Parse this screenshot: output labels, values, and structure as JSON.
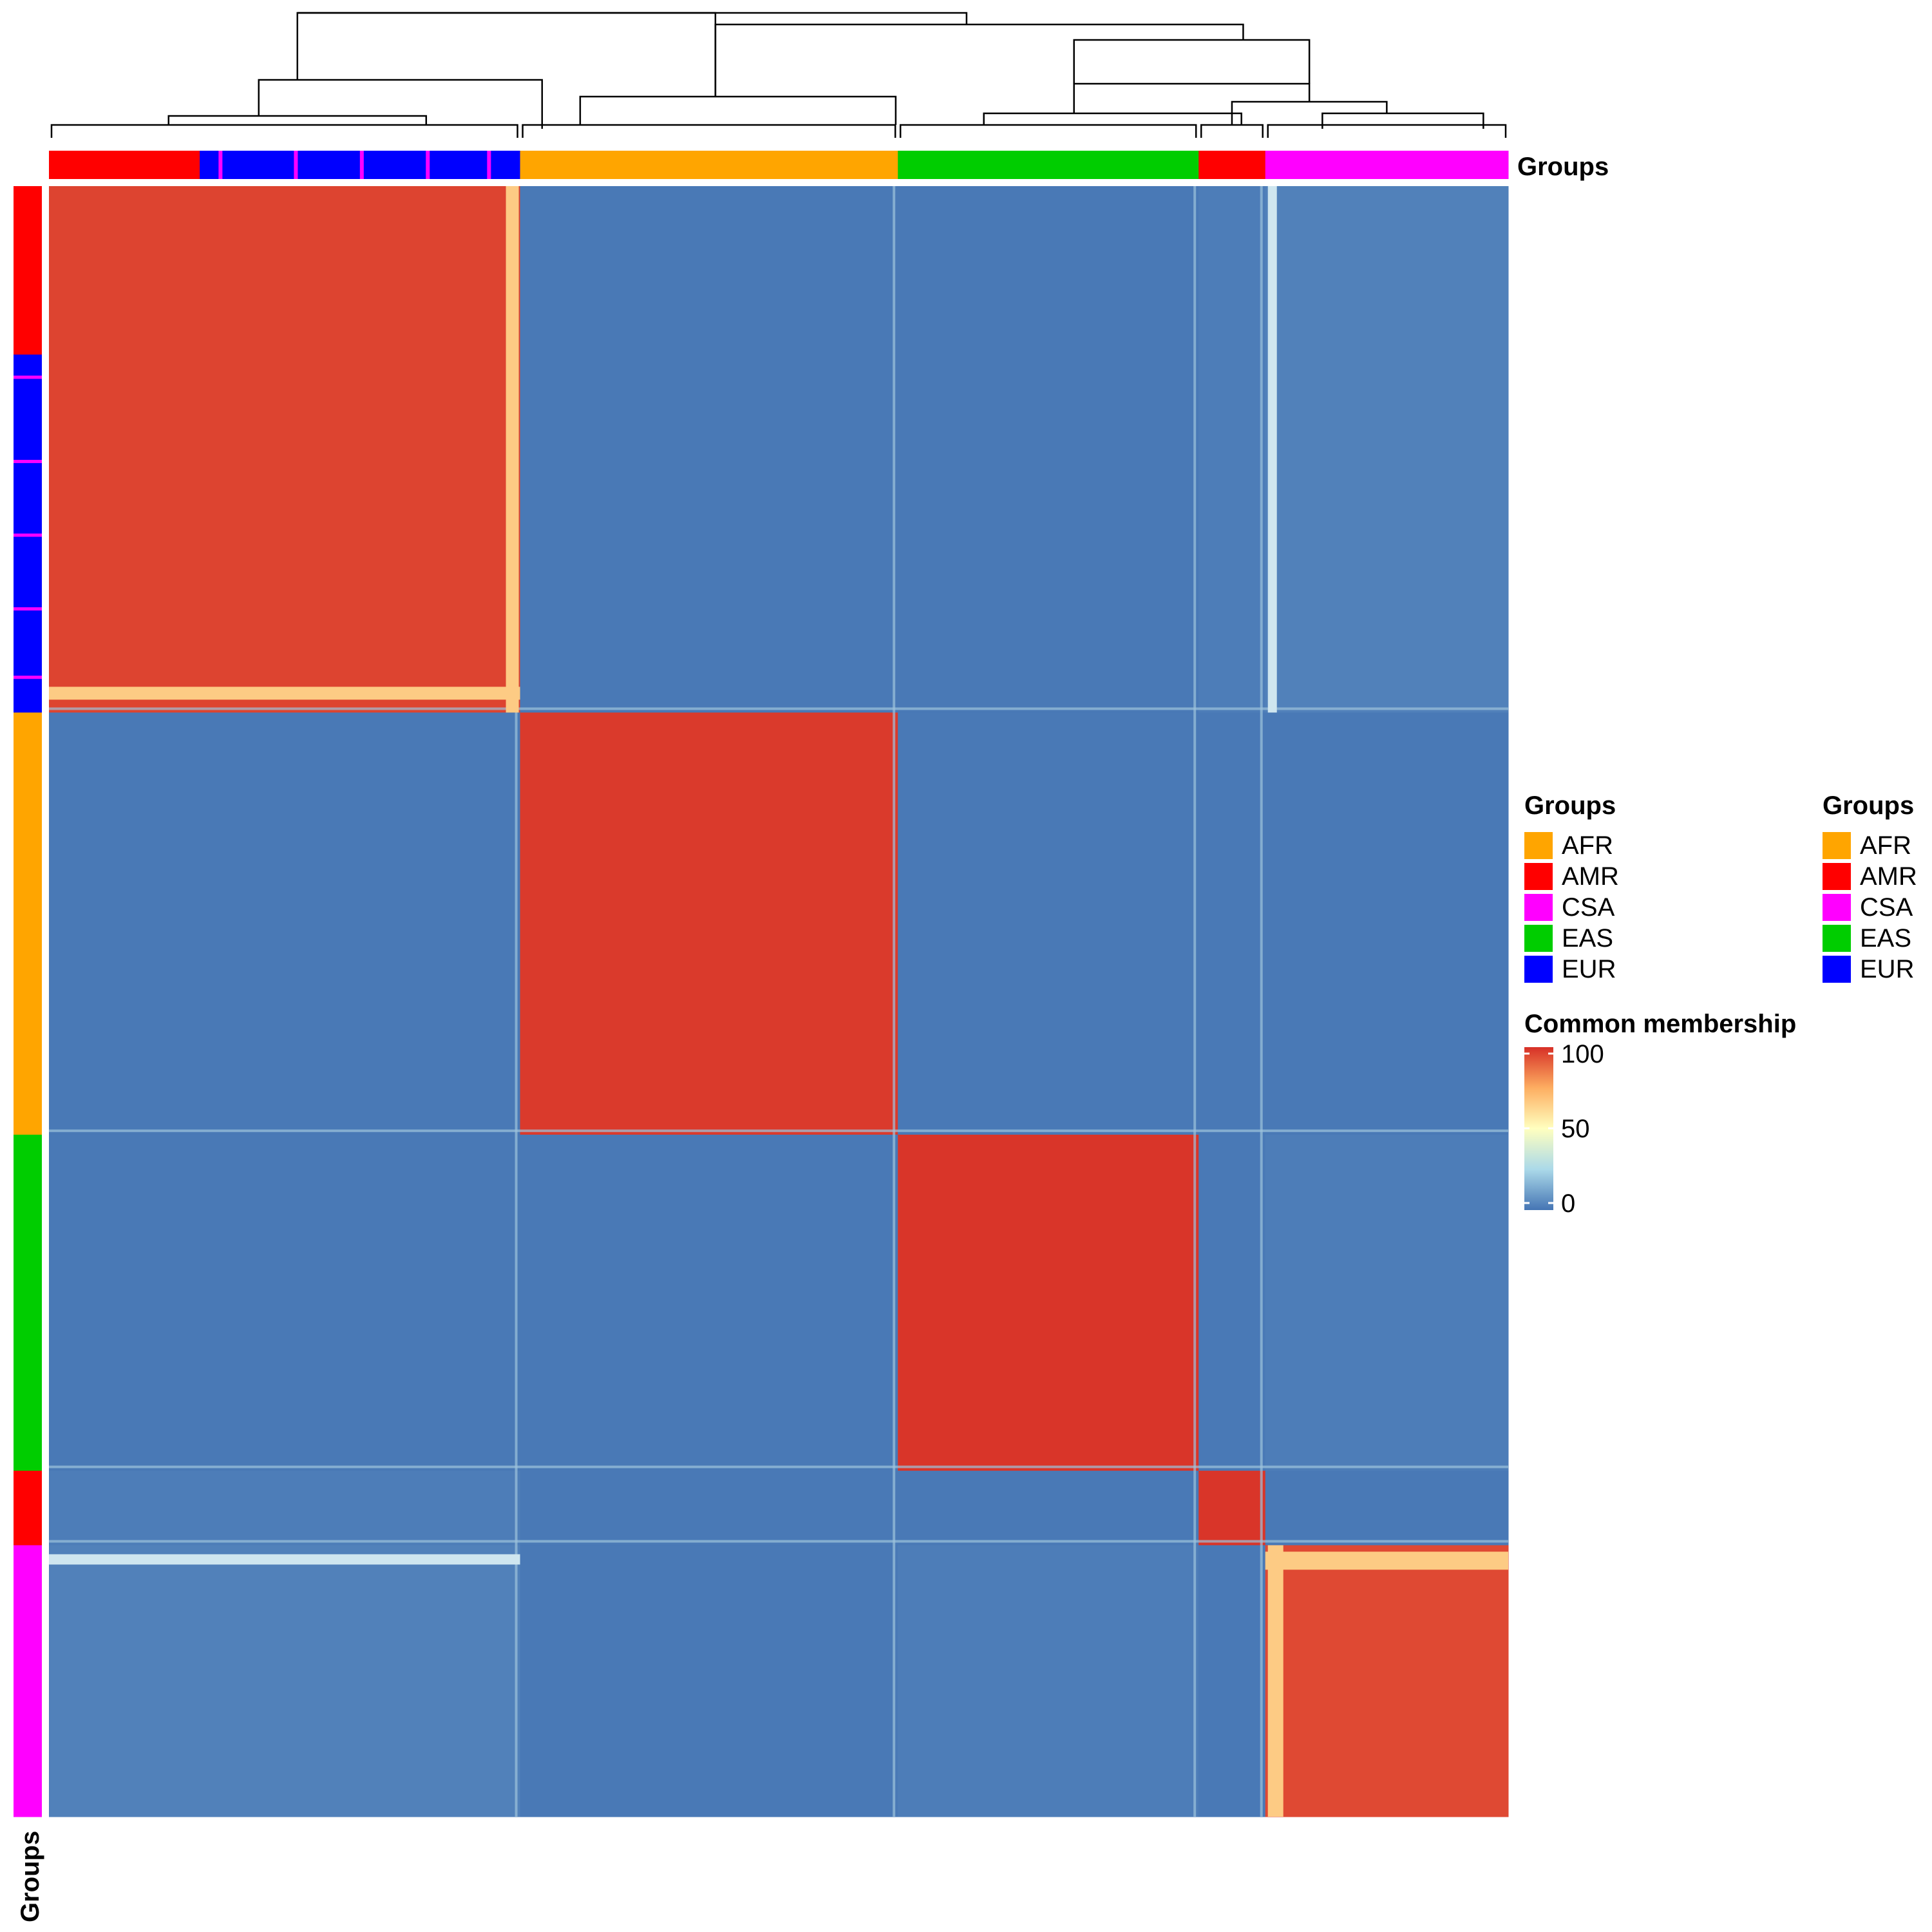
{
  "colors": {
    "AFR": "#FFA500",
    "AMR": "#FF0000",
    "CSA": "#FF00FF",
    "EAS": "#00CD00",
    "EUR": "#0000FF",
    "low": "#4575B4",
    "mid": "#FFFFBF",
    "high": "#D73027"
  },
  "annotations": {
    "top_label": "Groups",
    "left_label": "Groups"
  },
  "legends": [
    {
      "title": "Groups",
      "items": [
        "AFR",
        "AMR",
        "CSA",
        "EAS",
        "EUR"
      ]
    },
    {
      "title": "Groups",
      "items": [
        "AFR",
        "AMR",
        "CSA",
        "EAS",
        "EUR"
      ]
    }
  ],
  "colorbar": {
    "title": "Common membership",
    "ticks": [
      "100",
      "50",
      "0"
    ],
    "range": [
      0,
      100
    ]
  },
  "chart_data": {
    "type": "heatmap",
    "title": "",
    "value_name": "Common membership",
    "scale": {
      "min": 0,
      "mid": 50,
      "max": 100
    },
    "cluster_order": [
      "EUR/AMR",
      "AFR",
      "EAS",
      "AMR",
      "CSA"
    ],
    "cluster_dominant_group": [
      "EUR",
      "AFR",
      "EAS",
      "AMR",
      "CSA"
    ],
    "cluster_relative_size": [
      0.318,
      0.255,
      0.203,
      0.045,
      0.164
    ],
    "block_matrix": [
      [
        96,
        1,
        1,
        2,
        3
      ],
      [
        1,
        98,
        1,
        1,
        1
      ],
      [
        1,
        1,
        99,
        1,
        2
      ],
      [
        2,
        1,
        1,
        99,
        1
      ],
      [
        3,
        1,
        2,
        1,
        95
      ]
    ],
    "group_levels": [
      "AFR",
      "AMR",
      "CSA",
      "EAS",
      "EUR"
    ],
    "dendrogram": "hierarchical clustering of samples (top)"
  }
}
